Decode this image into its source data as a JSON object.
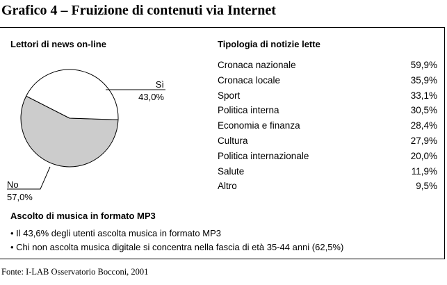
{
  "title": "Grafico 4 – Fruizione di contenuti via Internet",
  "pie_section": {
    "heading": "Lettori di news on-line",
    "slices": [
      {
        "label": "Sì",
        "value_text": "43,0%"
      },
      {
        "label": "No",
        "value_text": "57,0%"
      }
    ]
  },
  "types_section": {
    "heading": "Tipologia di notizie lette",
    "items": [
      {
        "label": "Cronaca nazionale",
        "value": "59,9%"
      },
      {
        "label": "Cronaca locale",
        "value": "35,9%"
      },
      {
        "label": "Sport",
        "value": "33,1%"
      },
      {
        "label": "Politica interna",
        "value": "30,5%"
      },
      {
        "label": "Economia e finanza",
        "value": "28,4%"
      },
      {
        "label": "Cultura",
        "value": "27,9%"
      },
      {
        "label": "Politica internazionale",
        "value": "20,0%"
      },
      {
        "label": "Salute",
        "value": "11,9%"
      },
      {
        "label": "Altro",
        "value": "9,5%"
      }
    ]
  },
  "mp3_section": {
    "heading": "Ascolto di musica in formato MP3",
    "bullets": [
      "• Il 43,6% degli utenti ascolta musica in formato MP3",
      "• Chi non ascolta musica digitale si concentra nella fascia di età 35-44 anni (62,5%)"
    ]
  },
  "source": "Fonte: I-LAB Osservatorio Bocconi, 2001",
  "chart_data": [
    {
      "type": "pie",
      "title": "Lettori di news on-line",
      "categories": [
        "Sì",
        "No"
      ],
      "values": [
        43.0,
        57.0
      ],
      "colors": {
        "Sì": "#ffffff",
        "No": "#cccccc"
      }
    },
    {
      "type": "table",
      "title": "Tipologia di notizie lette",
      "categories": [
        "Cronaca nazionale",
        "Cronaca locale",
        "Sport",
        "Politica interna",
        "Economia e finanza",
        "Cultura",
        "Politica internazionale",
        "Salute",
        "Altro"
      ],
      "values": [
        59.9,
        35.9,
        33.1,
        30.5,
        28.4,
        27.9,
        20.0,
        11.9,
        9.5
      ]
    }
  ]
}
